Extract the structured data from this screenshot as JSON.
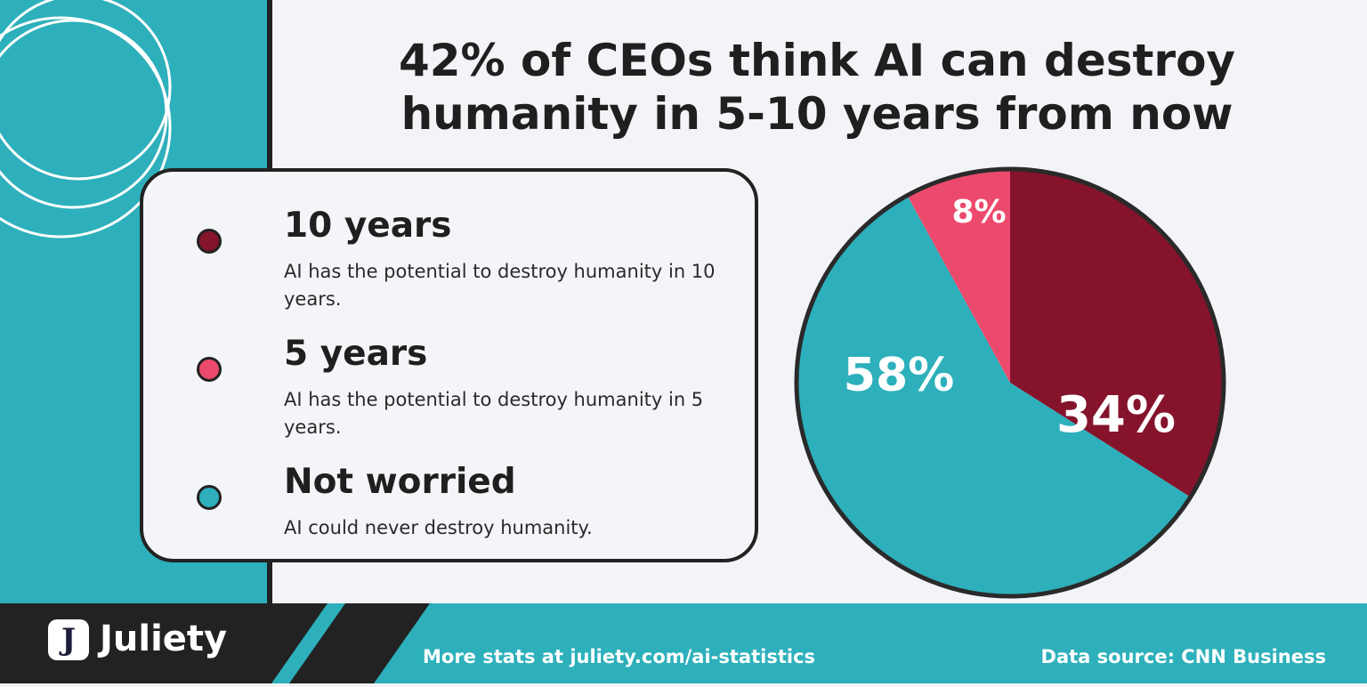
{
  "title_line1": "42% of CEOs think AI can destroy",
  "title_line2": "humanity in 5-10 years from now",
  "legend": [
    {
      "heading": "10 years",
      "description": "AI has the potential to destroy humanity in 10 years.",
      "color": "#85132c"
    },
    {
      "heading": "5 years",
      "description": "AI has the potential to destroy humanity in 5 years.",
      "color": "#ec4a6c"
    },
    {
      "heading": "Not worried",
      "description": "AI could never destroy humanity.",
      "color": "#2db0bb"
    }
  ],
  "chart_data": {
    "type": "pie",
    "title": "42% of CEOs think AI can destroy humanity in 5-10 years from now",
    "labels": [
      "10 years",
      "Not worried",
      "5 years"
    ],
    "values": [
      34,
      58,
      8
    ],
    "value_labels": [
      "34%",
      "58%",
      "8%"
    ],
    "colors": [
      "#85132c",
      "#2db0bb",
      "#ec4a6c"
    ]
  },
  "brand": {
    "name": "Juliety",
    "logo_letter": "J"
  },
  "footer": {
    "stats_link": "More stats at juliety.com/ai-statistics",
    "data_source": "Data source: CNN Business"
  },
  "colors": {
    "teal": "#2db0bb",
    "dark": "#222222",
    "background": "#f3f4f8",
    "maroon": "#85132c",
    "pink": "#ec4a6c"
  }
}
